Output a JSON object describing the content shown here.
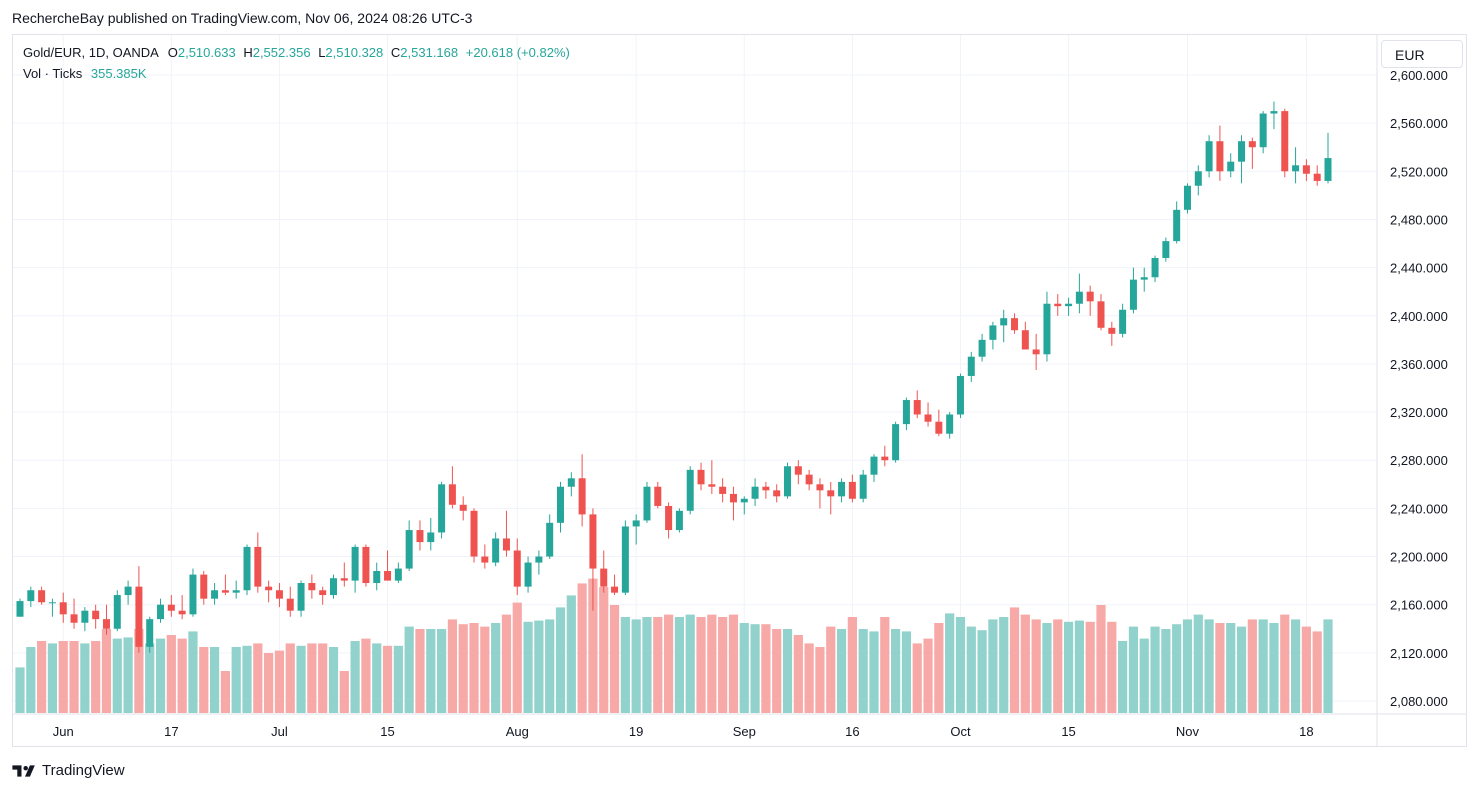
{
  "header": {
    "published_text": "RechercheBay published on TradingView.com, Nov 06, 2024 08:26 UTC-3"
  },
  "legend": {
    "symbol": "Gold/EUR, 1D, OANDA",
    "o_label": "O",
    "o_value": "2,510.633",
    "h_label": "H",
    "h_value": "2,552.356",
    "l_label": "L",
    "l_value": "2,510.328",
    "c_label": "C",
    "c_value": "2,531.168",
    "change": "+20.618 (+0.82%)",
    "vol_label": "Vol · Ticks",
    "vol_value": "355.385K"
  },
  "currency_button": "EUR",
  "footer": {
    "brand": "TradingView"
  },
  "colors": {
    "up": "#26a69a",
    "down": "#ef5350",
    "up_vol": "#92d2cc",
    "down_vol": "#f7a9a7",
    "grid": "#f0f3fa"
  },
  "chart_data": {
    "type": "candlestick",
    "title": "Gold/EUR, 1D, OANDA",
    "ylim": [
      2070,
      2610
    ],
    "yticks": [
      "2,080.000",
      "2,120.000",
      "2,160.000",
      "2,200.000",
      "2,240.000",
      "2,280.000",
      "2,320.000",
      "2,360.000",
      "2,400.000",
      "2,440.000",
      "2,480.000",
      "2,520.000",
      "2,560.000",
      "2,600.000"
    ],
    "ytick_values": [
      2080,
      2120,
      2160,
      2200,
      2240,
      2280,
      2320,
      2360,
      2400,
      2440,
      2480,
      2520,
      2560,
      2600
    ],
    "xticks": [
      {
        "label": "Jun",
        "index": 4
      },
      {
        "label": "17",
        "index": 14
      },
      {
        "label": "Jul",
        "index": 24
      },
      {
        "label": "15",
        "index": 34
      },
      {
        "label": "Aug",
        "index": 46
      },
      {
        "label": "19",
        "index": 57
      },
      {
        "label": "Sep",
        "index": 67
      },
      {
        "label": "16",
        "index": 77
      },
      {
        "label": "Oct",
        "index": 87
      },
      {
        "label": "15",
        "index": 97
      },
      {
        "label": "Nov",
        "index": 108
      },
      {
        "label": "18",
        "index": 119
      }
    ],
    "x_count": 122,
    "candles": [
      [
        2150,
        2165,
        2150,
        2163,
        0.38
      ],
      [
        2163,
        2175,
        2158,
        2172,
        0.55
      ],
      [
        2172,
        2175,
        2160,
        2162,
        0.6
      ],
      [
        2162,
        2165,
        2150,
        2162,
        0.58
      ],
      [
        2162,
        2170,
        2145,
        2152,
        0.6
      ],
      [
        2152,
        2165,
        2140,
        2145,
        0.6
      ],
      [
        2145,
        2158,
        2138,
        2155,
        0.58
      ],
      [
        2155,
        2160,
        2140,
        2148,
        0.6
      ],
      [
        2148,
        2160,
        2135,
        2140,
        0.7
      ],
      [
        2140,
        2172,
        2138,
        2168,
        0.62
      ],
      [
        2168,
        2180,
        2160,
        2175,
        0.63
      ],
      [
        2175,
        2192,
        2120,
        2125,
        0.7
      ],
      [
        2125,
        2150,
        2120,
        2148,
        0.58
      ],
      [
        2148,
        2165,
        2145,
        2160,
        0.62
      ],
      [
        2160,
        2168,
        2150,
        2155,
        0.65
      ],
      [
        2155,
        2168,
        2148,
        2152,
        0.62
      ],
      [
        2152,
        2190,
        2150,
        2185,
        0.68
      ],
      [
        2185,
        2188,
        2160,
        2165,
        0.55
      ],
      [
        2165,
        2178,
        2160,
        2172,
        0.55
      ],
      [
        2172,
        2185,
        2168,
        2170,
        0.35
      ],
      [
        2170,
        2180,
        2165,
        2172,
        0.55
      ],
      [
        2172,
        2210,
        2168,
        2208,
        0.56
      ],
      [
        2208,
        2220,
        2170,
        2175,
        0.58
      ],
      [
        2175,
        2180,
        2162,
        2172,
        0.5
      ],
      [
        2172,
        2178,
        2158,
        2165,
        0.52
      ],
      [
        2165,
        2175,
        2150,
        2155,
        0.58
      ],
      [
        2155,
        2180,
        2150,
        2178,
        0.56
      ],
      [
        2178,
        2185,
        2165,
        2172,
        0.58
      ],
      [
        2172,
        2175,
        2160,
        2168,
        0.58
      ],
      [
        2168,
        2185,
        2165,
        2182,
        0.55
      ],
      [
        2182,
        2195,
        2175,
        2180,
        0.35
      ],
      [
        2180,
        2210,
        2170,
        2208,
        0.6
      ],
      [
        2208,
        2210,
        2175,
        2178,
        0.62
      ],
      [
        2178,
        2195,
        2172,
        2188,
        0.58
      ],
      [
        2188,
        2205,
        2180,
        2180,
        0.56
      ],
      [
        2180,
        2195,
        2178,
        2190,
        0.56
      ],
      [
        2190,
        2230,
        2188,
        2222,
        0.72
      ],
      [
        2222,
        2230,
        2205,
        2212,
        0.7
      ],
      [
        2212,
        2232,
        2205,
        2220,
        0.7
      ],
      [
        2220,
        2262,
        2215,
        2260,
        0.7
      ],
      [
        2260,
        2275,
        2240,
        2243,
        0.78
      ],
      [
        2243,
        2250,
        2230,
        2238,
        0.74
      ],
      [
        2238,
        2240,
        2195,
        2200,
        0.75
      ],
      [
        2200,
        2210,
        2190,
        2195,
        0.72
      ],
      [
        2195,
        2220,
        2192,
        2215,
        0.75
      ],
      [
        2215,
        2238,
        2200,
        2205,
        0.82
      ],
      [
        2205,
        2215,
        2168,
        2175,
        0.92
      ],
      [
        2175,
        2200,
        2170,
        2195,
        0.76
      ],
      [
        2195,
        2205,
        2185,
        2200,
        0.77
      ],
      [
        2200,
        2235,
        2198,
        2228,
        0.78
      ],
      [
        2228,
        2262,
        2220,
        2258,
        0.88
      ],
      [
        2258,
        2270,
        2250,
        2265,
        0.98
      ],
      [
        2265,
        2285,
        2225,
        2235,
        1.08
      ],
      [
        2235,
        2240,
        2155,
        2190,
        1.12
      ],
      [
        2190,
        2205,
        2170,
        2175,
        1.05
      ],
      [
        2175,
        2185,
        2168,
        2170,
        0.9
      ],
      [
        2170,
        2230,
        2168,
        2225,
        0.8
      ],
      [
        2225,
        2235,
        2210,
        2230,
        0.78
      ],
      [
        2230,
        2262,
        2228,
        2258,
        0.8
      ],
      [
        2258,
        2262,
        2240,
        2242,
        0.8
      ],
      [
        2242,
        2245,
        2215,
        2222,
        0.82
      ],
      [
        2222,
        2240,
        2220,
        2238,
        0.8
      ],
      [
        2238,
        2275,
        2235,
        2272,
        0.82
      ],
      [
        2272,
        2278,
        2255,
        2260,
        0.8
      ],
      [
        2260,
        2280,
        2252,
        2258,
        0.82
      ],
      [
        2258,
        2265,
        2245,
        2252,
        0.8
      ],
      [
        2252,
        2258,
        2230,
        2245,
        0.82
      ],
      [
        2245,
        2250,
        2235,
        2248,
        0.75
      ],
      [
        2248,
        2265,
        2242,
        2258,
        0.74
      ],
      [
        2258,
        2262,
        2248,
        2255,
        0.74
      ],
      [
        2255,
        2260,
        2245,
        2250,
        0.7
      ],
      [
        2250,
        2278,
        2248,
        2275,
        0.7
      ],
      [
        2275,
        2280,
        2260,
        2268,
        0.65
      ],
      [
        2268,
        2272,
        2255,
        2260,
        0.58
      ],
      [
        2260,
        2265,
        2240,
        2255,
        0.55
      ],
      [
        2255,
        2262,
        2235,
        2250,
        0.72
      ],
      [
        2250,
        2265,
        2245,
        2262,
        0.7
      ],
      [
        2262,
        2268,
        2245,
        2248,
        0.8
      ],
      [
        2248,
        2272,
        2245,
        2268,
        0.7
      ],
      [
        2268,
        2285,
        2262,
        2283,
        0.68
      ],
      [
        2283,
        2292,
        2275,
        2280,
        0.8
      ],
      [
        2280,
        2312,
        2278,
        2310,
        0.7
      ],
      [
        2310,
        2332,
        2305,
        2330,
        0.68
      ],
      [
        2330,
        2338,
        2315,
        2318,
        0.58
      ],
      [
        2318,
        2328,
        2308,
        2312,
        0.62
      ],
      [
        2312,
        2322,
        2300,
        2302,
        0.75
      ],
      [
        2302,
        2320,
        2298,
        2318,
        0.83
      ],
      [
        2318,
        2352,
        2315,
        2350,
        0.8
      ],
      [
        2350,
        2370,
        2345,
        2366,
        0.72
      ],
      [
        2366,
        2385,
        2362,
        2380,
        0.69
      ],
      [
        2380,
        2395,
        2372,
        2392,
        0.78
      ],
      [
        2392,
        2405,
        2378,
        2398,
        0.8
      ],
      [
        2398,
        2402,
        2385,
        2388,
        0.88
      ],
      [
        2388,
        2395,
        2375,
        2372,
        0.82
      ],
      [
        2372,
        2385,
        2355,
        2368,
        0.78
      ],
      [
        2368,
        2420,
        2362,
        2410,
        0.75
      ],
      [
        2410,
        2418,
        2400,
        2408,
        0.78
      ],
      [
        2408,
        2415,
        2400,
        2410,
        0.76
      ],
      [
        2410,
        2435,
        2402,
        2420,
        0.77
      ],
      [
        2420,
        2425,
        2400,
        2412,
        0.76
      ],
      [
        2412,
        2418,
        2388,
        2390,
        0.9
      ],
      [
        2390,
        2395,
        2375,
        2385,
        0.76
      ],
      [
        2385,
        2410,
        2382,
        2405,
        0.6
      ],
      [
        2405,
        2440,
        2402,
        2430,
        0.72
      ],
      [
        2430,
        2440,
        2420,
        2432,
        0.62
      ],
      [
        2432,
        2450,
        2428,
        2448,
        0.72
      ],
      [
        2448,
        2465,
        2445,
        2462,
        0.7
      ],
      [
        2462,
        2495,
        2460,
        2488,
        0.74
      ],
      [
        2488,
        2510,
        2485,
        2508,
        0.78
      ],
      [
        2508,
        2525,
        2500,
        2520,
        0.82
      ],
      [
        2520,
        2550,
        2515,
        2545,
        0.78
      ],
      [
        2545,
        2558,
        2512,
        2520,
        0.75
      ],
      [
        2520,
        2535,
        2515,
        2528,
        0.75
      ],
      [
        2528,
        2550,
        2510,
        2545,
        0.72
      ],
      [
        2545,
        2548,
        2522,
        2540,
        0.78
      ],
      [
        2540,
        2570,
        2535,
        2568,
        0.78
      ],
      [
        2568,
        2578,
        2555,
        2570,
        0.75
      ],
      [
        2570,
        2572,
        2515,
        2520,
        0.82
      ],
      [
        2520,
        2540,
        2510,
        2525,
        0.78
      ],
      [
        2525,
        2530,
        2512,
        2518,
        0.72
      ],
      [
        2518,
        2525,
        2508,
        2512,
        0.68
      ],
      [
        2512,
        2552,
        2510,
        2531,
        0.78
      ]
    ]
  }
}
